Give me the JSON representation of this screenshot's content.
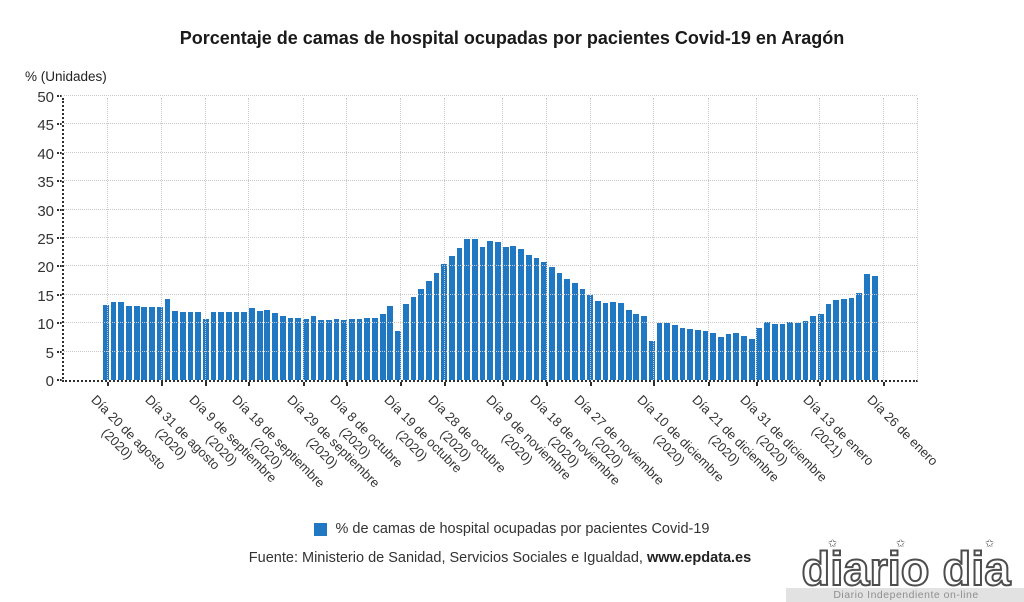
{
  "page": {
    "background": "#ffffff"
  },
  "header": {
    "title": "Porcentaje de camas de hospital ocupadas por pacientes Covid-19 en Aragón"
  },
  "chart_data": {
    "type": "bar",
    "title": "Porcentaje de camas de hospital ocupadas por pacientes Covid-19 en Aragón",
    "unit_label": "% (Unidades)",
    "ylabel": "% (Unidades)",
    "xlabel": "",
    "ylim": [
      0,
      50
    ],
    "yticks": [
      0,
      5,
      10,
      15,
      20,
      25,
      30,
      35,
      40,
      45,
      50
    ],
    "grid": true,
    "bar_color": "#1f78c1",
    "legend_position": "bottom-center",
    "series_name": "% de camas de hospital ocupadas por pacientes Covid-19",
    "values": [
      13.3,
      13.7,
      13.8,
      13.1,
      13.0,
      12.9,
      12.8,
      12.8,
      14.3,
      12.1,
      12.0,
      11.9,
      11.9,
      10.8,
      11.9,
      11.9,
      11.9,
      11.9,
      11.9,
      12.7,
      12.1,
      12.4,
      11.8,
      11.2,
      11.0,
      11.0,
      10.8,
      11.3,
      10.6,
      10.5,
      10.7,
      10.6,
      10.8,
      10.7,
      10.9,
      11.0,
      11.6,
      13.0,
      8.7,
      13.4,
      14.7,
      16.0,
      17.4,
      18.9,
      20.4,
      21.8,
      23.2,
      24.9,
      24.9,
      23.4,
      24.5,
      24.3,
      23.5,
      23.6,
      23.1,
      22.1,
      21.4,
      20.8,
      19.9,
      18.9,
      17.8,
      17.0,
      16.1,
      15.0,
      13.9,
      13.6,
      13.8,
      13.5,
      12.4,
      11.7,
      11.2,
      6.9,
      10.0,
      10.1,
      9.7,
      9.1,
      9.0,
      8.8,
      8.6,
      8.2,
      7.5,
      8.1,
      8.2,
      7.8,
      7.3,
      9.1,
      10.3,
      9.9,
      9.8,
      10.3,
      10.0,
      10.4,
      11.3,
      11.7,
      13.4,
      14.1,
      14.3,
      14.5,
      15.3,
      18.7,
      18.4
    ],
    "x_tick_labels": [
      {
        "label": "Día 20 de agosto",
        "year": "(2020)",
        "pos": 0.0
      },
      {
        "label": "Día 31 de agosto",
        "year": "(2020)",
        "pos": 0.069
      },
      {
        "label": "Día 9 de septiembre",
        "year": "(2020)",
        "pos": 0.126
      },
      {
        "label": "Día 18 de septiembre",
        "year": "(2020)",
        "pos": 0.182
      },
      {
        "label": "Día 29 de septiembre",
        "year": "(2020)",
        "pos": 0.252
      },
      {
        "label": "Día 8 de octubre",
        "year": "(2020)",
        "pos": 0.308
      },
      {
        "label": "Día 19 de octubre",
        "year": "(2020)",
        "pos": 0.377
      },
      {
        "label": "Día 28 de octubre",
        "year": "(2020)",
        "pos": 0.434
      },
      {
        "label": "Día 9 de noviembre",
        "year": "(2020)",
        "pos": 0.509
      },
      {
        "label": "Día 18 de noviembre",
        "year": "(2020)",
        "pos": 0.566
      },
      {
        "label": "Día 27 de noviembre",
        "year": "(2020)",
        "pos": 0.623
      },
      {
        "label": "Día 10 de diciembre",
        "year": "(2020)",
        "pos": 0.704
      },
      {
        "label": "Día 21 de diciembre",
        "year": "(2020)",
        "pos": 0.774
      },
      {
        "label": "Día 31 de diciembre",
        "year": "(2020)",
        "pos": 0.836
      },
      {
        "label": "Día 13 de enero",
        "year": "(2021)",
        "pos": 0.918
      },
      {
        "label": "Día 26 de enero",
        "year": "",
        "pos": 1.0
      }
    ]
  },
  "legend": {
    "swatch_color": "#1f78c1",
    "label": "% de camas de hospital ocupadas por pacientes Covid-19"
  },
  "source": {
    "prefix": "Fuente: Ministerio de Sanidad, Servicios Sociales e Igualdad, ",
    "site": "www.epdata.es"
  },
  "watermark": {
    "logo_text": "diario dia",
    "star_icon": "✩",
    "tagline": "Diario Independiente on-line"
  }
}
